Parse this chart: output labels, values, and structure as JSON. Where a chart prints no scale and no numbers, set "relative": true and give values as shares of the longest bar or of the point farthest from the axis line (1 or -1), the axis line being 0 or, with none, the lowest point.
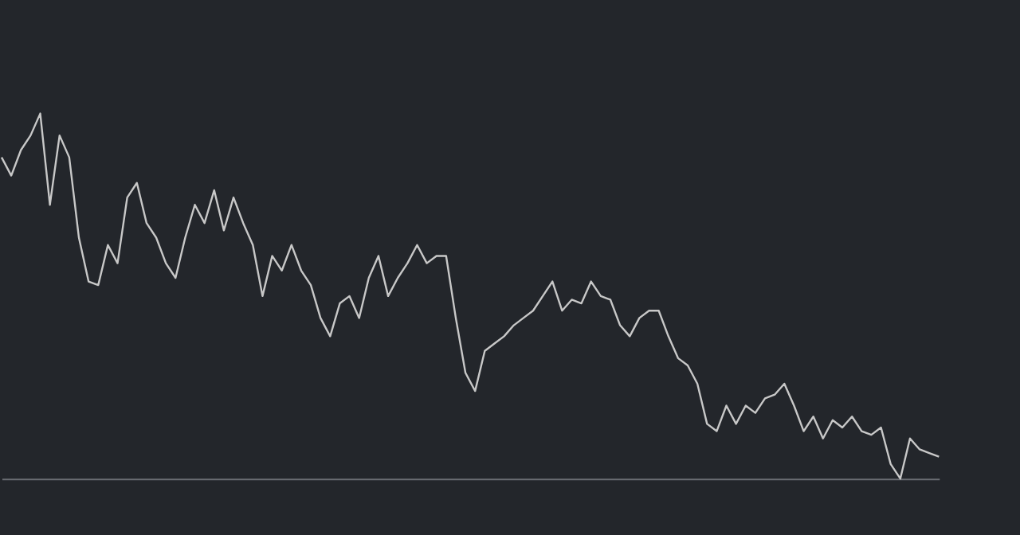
{
  "chart_data": {
    "type": "line",
    "relative": true,
    "tick_labels": false,
    "grid": false,
    "legend": false,
    "categories": [
      null,
      null,
      null,
      null,
      null,
      null,
      null,
      null,
      null,
      null,
      null,
      null,
      null,
      null,
      null,
      null,
      null,
      null,
      null,
      null,
      null,
      null,
      null,
      null,
      null,
      null,
      null,
      null,
      null,
      null,
      null,
      null,
      null,
      null,
      null,
      null,
      null,
      null,
      null,
      null,
      null,
      null,
      null,
      null,
      null,
      null,
      null,
      null,
      null,
      null,
      null,
      null,
      null,
      null,
      null,
      null,
      null,
      null,
      null,
      null,
      null,
      null,
      null,
      null,
      null,
      null,
      null,
      null,
      null,
      null,
      null,
      null,
      null,
      null,
      null,
      null,
      null,
      null,
      null,
      null,
      null,
      null,
      null,
      null,
      null,
      null,
      null,
      null,
      null,
      null,
      null,
      null,
      null,
      null,
      null,
      null,
      null,
      null
    ],
    "series": [
      {
        "color": "#c8c8c8",
        "values": [
          0.88,
          0.83,
          0.9,
          0.94,
          1.0,
          0.75,
          0.94,
          0.88,
          0.66,
          0.54,
          0.53,
          0.64,
          0.59,
          0.77,
          0.81,
          0.7,
          0.66,
          0.59,
          0.55,
          0.66,
          0.75,
          0.7,
          0.79,
          0.68,
          0.77,
          0.7,
          0.64,
          0.5,
          0.61,
          0.57,
          0.64,
          0.57,
          0.53,
          0.44,
          0.39,
          0.48,
          0.5,
          0.44,
          0.55,
          0.61,
          0.5,
          0.55,
          0.59,
          0.64,
          0.59,
          0.61,
          0.61,
          0.44,
          0.29,
          0.24,
          0.35,
          0.37,
          0.39,
          0.42,
          0.44,
          0.46,
          0.5,
          0.54,
          0.46,
          0.49,
          0.48,
          0.54,
          0.5,
          0.49,
          0.42,
          0.39,
          0.44,
          0.46,
          0.46,
          0.39,
          0.33,
          0.31,
          0.26,
          0.15,
          0.13,
          0.2,
          0.15,
          0.2,
          0.18,
          0.22,
          0.23,
          0.26,
          0.2,
          0.13,
          0.17,
          0.11,
          0.16,
          0.14,
          0.17,
          0.13,
          0.12,
          0.14,
          0.04,
          0.0,
          0.11,
          0.08,
          0.07,
          0.06
        ]
      }
    ]
  }
}
